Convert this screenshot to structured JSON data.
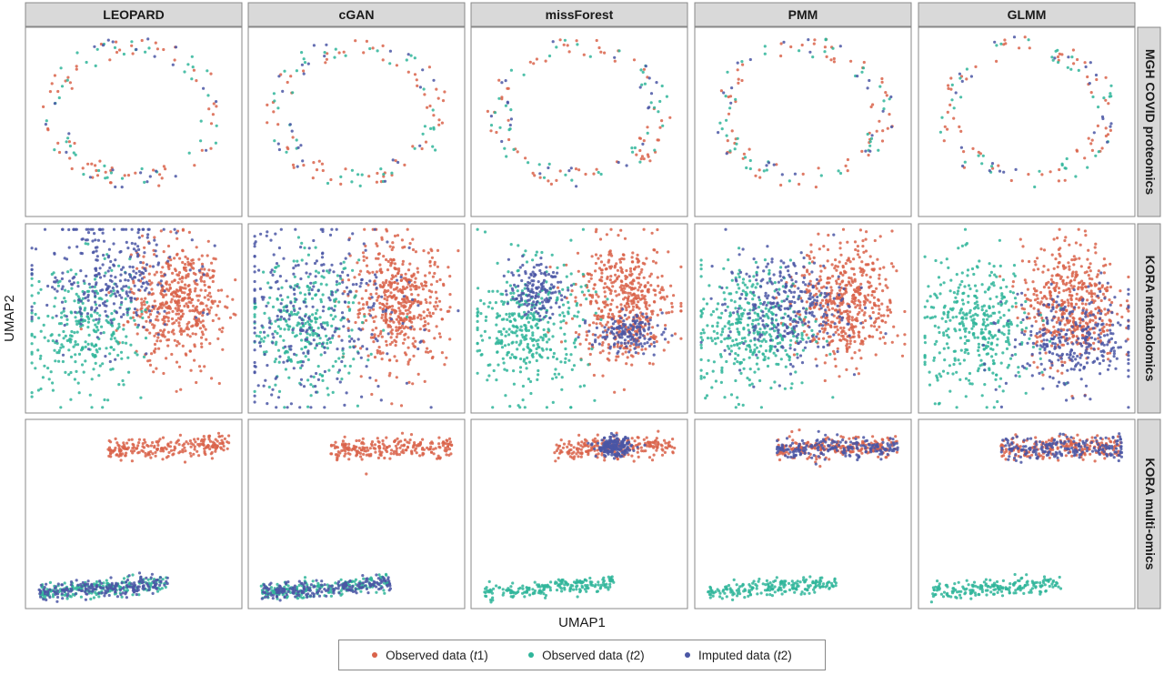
{
  "chart_data": {
    "type": "scatter",
    "xlabel": "UMAP1",
    "ylabel": "UMAP2",
    "columns": [
      "LEOPARD",
      "cGAN",
      "missForest",
      "PMM",
      "GLMM"
    ],
    "rows": [
      "MGH COVID proteomics",
      "KORA metabolomics",
      "KORA multi-omics"
    ],
    "series": [
      {
        "name": "Observed data (t1)",
        "label_pre": "Observed data (",
        "label_it": "t",
        "label_post": "1)",
        "color": "#d9634a"
      },
      {
        "name": "Observed data (t2)",
        "label_pre": "Observed data (",
        "label_it": "t",
        "label_post": "2)",
        "color": "#2fb59a"
      },
      {
        "name": "Imputed data (t2)",
        "label_pre": "Imputed data (",
        "label_it": "t",
        "label_post": "2)",
        "color": "#4a56a4"
      }
    ],
    "grid": false,
    "legend_position": "bottom",
    "panels": [
      [
        {
          "ring": true,
          "counts": [
            65,
            45,
            25
          ],
          "imp": {
            "mode": "ring"
          }
        },
        {
          "ring": true,
          "counts": [
            65,
            45,
            25
          ],
          "imp": {
            "mode": "ring"
          }
        },
        {
          "ring": true,
          "counts": [
            65,
            45,
            25
          ],
          "imp": {
            "mode": "ring"
          }
        },
        {
          "ring": true,
          "counts": [
            65,
            45,
            25
          ],
          "imp": {
            "mode": "ring"
          }
        },
        {
          "ring": true,
          "counts": [
            65,
            45,
            25
          ],
          "imp": {
            "mode": "ring"
          }
        }
      ],
      [
        {
          "counts": [
            480,
            300,
            300
          ],
          "imp": {
            "mode": "spread",
            "cx": 0.38,
            "cy": 0.72,
            "sx": 0.17,
            "sy": 0.17
          }
        },
        {
          "counts": [
            480,
            300,
            300
          ],
          "imp": {
            "mode": "spread",
            "cx": 0.32,
            "cy": 0.52,
            "sx": 0.22,
            "sy": 0.25
          }
        },
        {
          "counts": [
            480,
            380,
            300
          ],
          "imp": {
            "mode": "clusters",
            "parts": [
              [
                0.3,
                0.65,
                0.06,
                0.07
              ],
              [
                0.72,
                0.42,
                0.08,
                0.05
              ]
            ]
          }
        },
        {
          "counts": [
            480,
            380,
            300
          ],
          "imp": {
            "mode": "spread",
            "cx": 0.42,
            "cy": 0.56,
            "sx": 0.14,
            "sy": 0.14
          }
        },
        {
          "counts": [
            480,
            380,
            300
          ],
          "imp": {
            "mode": "spread",
            "cx": 0.72,
            "cy": 0.38,
            "sx": 0.15,
            "sy": 0.13
          }
        }
      ],
      [
        {
          "counts": [
            220,
            200,
            200
          ],
          "imp": {
            "mode": "bottom"
          }
        },
        {
          "counts": [
            220,
            200,
            200
          ],
          "imp": {
            "mode": "bottom"
          }
        },
        {
          "counts": [
            220,
            200,
            200
          ],
          "imp": {
            "mode": "cluster",
            "cx": 0.66,
            "cy": 0.145,
            "sx": 0.04,
            "sy": 0.025
          }
        },
        {
          "counts": [
            220,
            200,
            200
          ],
          "imp": {
            "mode": "top"
          }
        },
        {
          "counts": [
            220,
            200,
            200
          ],
          "imp": {
            "mode": "top"
          }
        }
      ]
    ]
  }
}
